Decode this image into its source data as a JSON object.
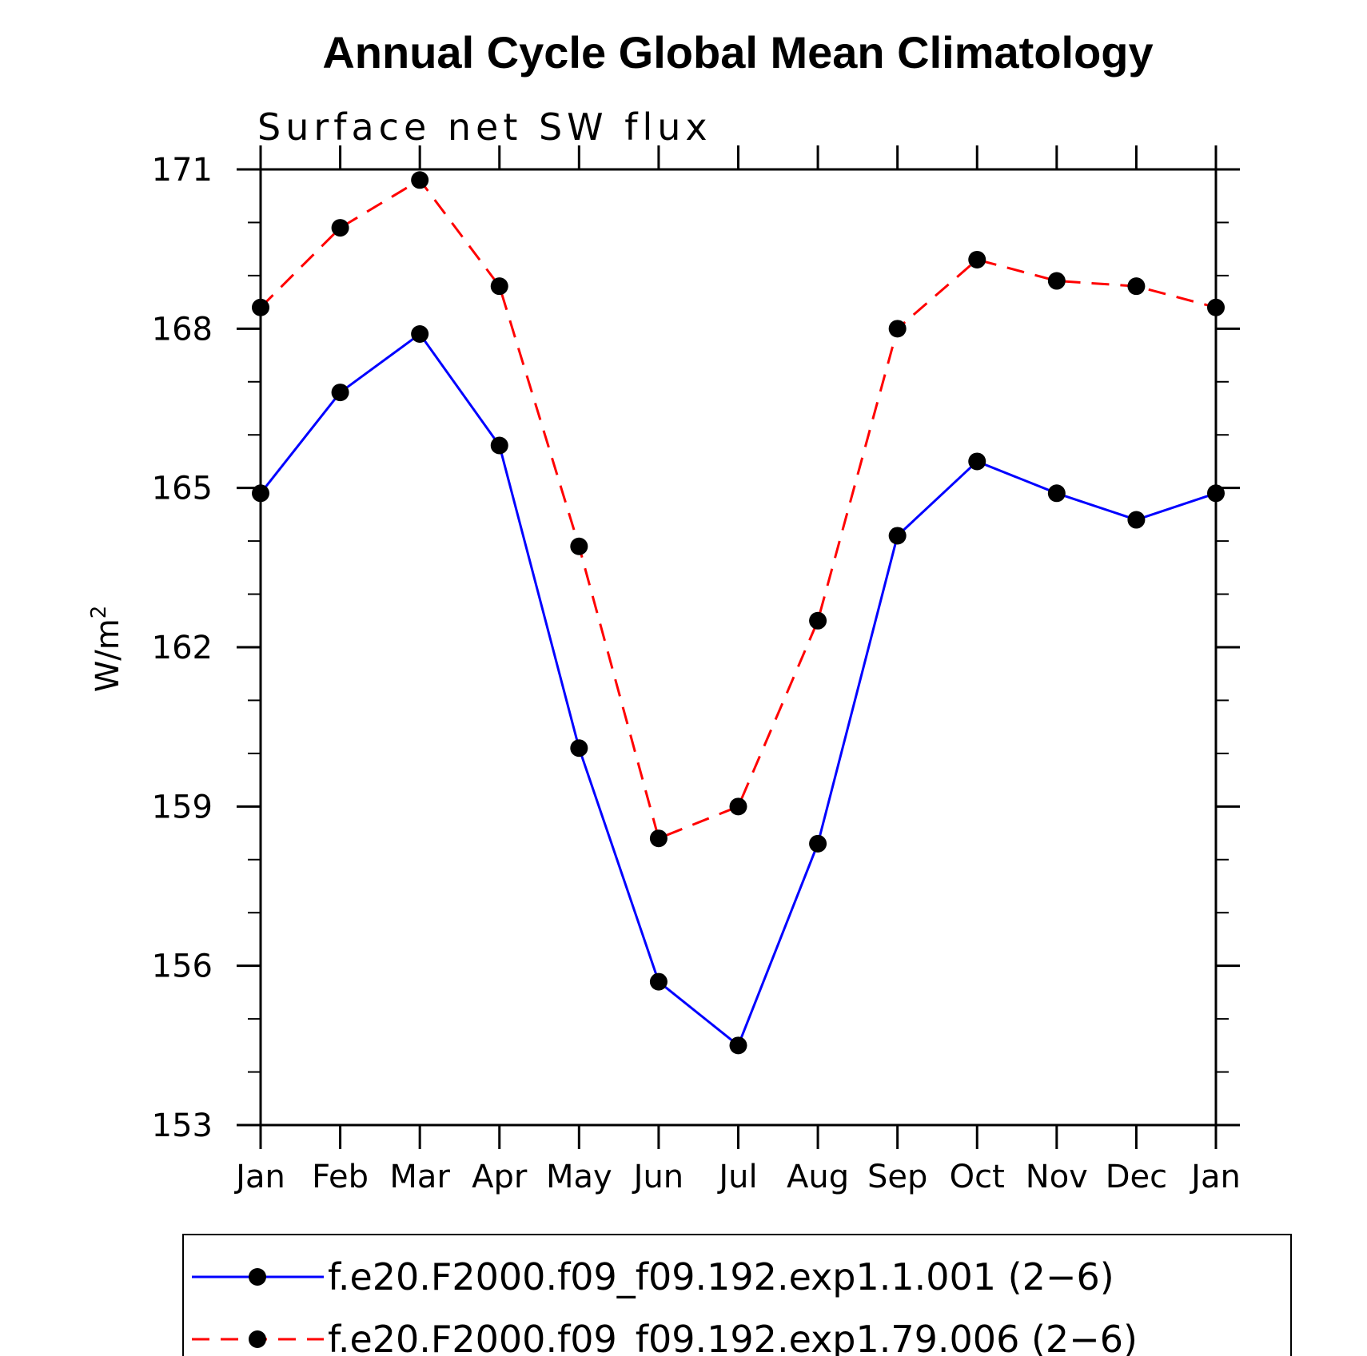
{
  "chart_data": {
    "type": "line",
    "title": "Annual Cycle Global Mean Climatology",
    "subtitle": "Surface net SW flux",
    "ylabel": "W/m",
    "ylabel_superscript": "2",
    "categories": [
      "Jan",
      "Feb",
      "Mar",
      "Apr",
      "May",
      "Jun",
      "Jul",
      "Aug",
      "Sep",
      "Oct",
      "Nov",
      "Dec",
      "Jan"
    ],
    "ylim": [
      153,
      171
    ],
    "yticks": [
      "153",
      "156",
      "159",
      "162",
      "165",
      "168",
      "171"
    ],
    "grid": false,
    "legend_position": "bottom",
    "series": [
      {
        "name": "f.e20.F2000.f09_f09.192.exp1.1.001 (2−6)",
        "color": "#0000ff",
        "line_style": "solid",
        "marker": "filled-circle",
        "values": [
          164.9,
          166.8,
          167.9,
          165.8,
          160.1,
          155.7,
          154.5,
          158.3,
          164.1,
          165.5,
          164.9,
          164.4,
          164.9
        ]
      },
      {
        "name": "f.e20.F2000.f09_f09.192.exp1.79.006 (2−6)",
        "color": "#ff0000",
        "line_style": "dashed",
        "marker": "filled-circle",
        "values": [
          168.4,
          169.9,
          170.8,
          168.8,
          163.9,
          158.4,
          159.0,
          162.5,
          168.0,
          169.3,
          168.9,
          168.8,
          168.4
        ]
      }
    ]
  }
}
